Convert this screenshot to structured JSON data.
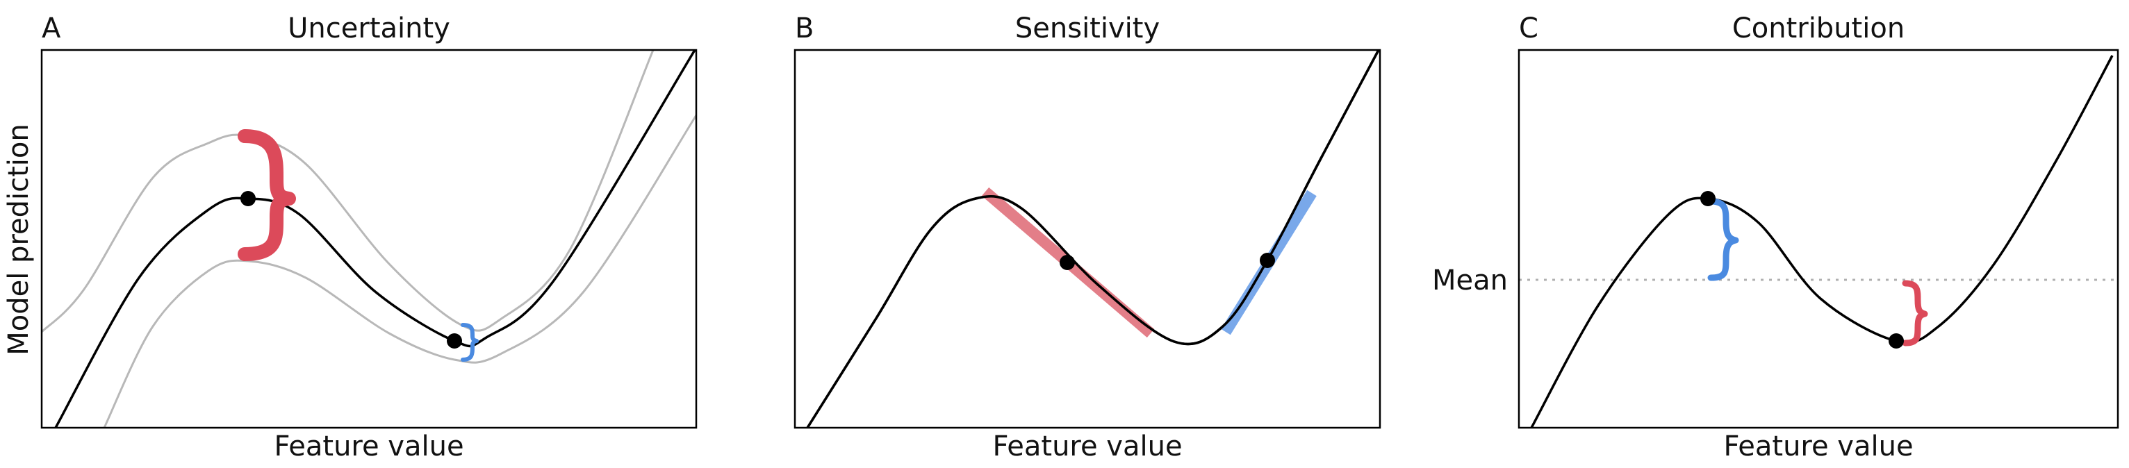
{
  "figure": {
    "shared_ylabel": "Model prediction",
    "panels": [
      {
        "letter": "A",
        "title": "Uncertainty",
        "xlabel": "Feature value"
      },
      {
        "letter": "B",
        "title": "Sensitivity",
        "xlabel": "Feature value"
      },
      {
        "letter": "C",
        "title": "Contribution",
        "xlabel": "Feature value",
        "mean_label": "Mean"
      }
    ]
  },
  "colors": {
    "curve": "#000000",
    "band": "#b8b8b8",
    "red": "#dc4a5a",
    "red_tangent": "#e0707b",
    "blue": "#4a8ae0",
    "blue_tangent": "#6a9ee8",
    "mean_line": "#b0b0b0",
    "point": "#000000"
  },
  "icons": {
    "large_brace": "red-curly-brace-icon",
    "small_brace": "blue-curly-brace-icon"
  }
}
